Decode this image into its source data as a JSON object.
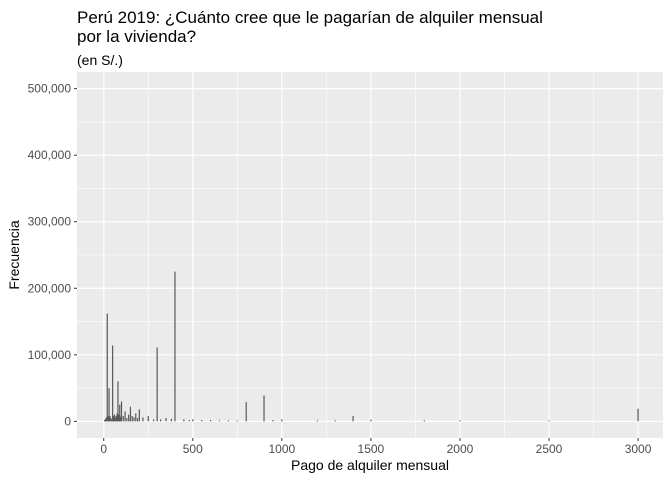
{
  "chart_data": {
    "type": "bar",
    "title": "Perú 2019: ¿Cuánto cree que le pagarían de alquiler mensual por la vivienda?",
    "subtitle": "(en S/.)",
    "xlabel": "Pago de alquiler mensual",
    "ylabel": "Frecuencia",
    "xlim": [
      -150,
      3140
    ],
    "ylim": [
      -25000,
      525000
    ],
    "x_ticks": [
      0,
      500,
      1000,
      1500,
      2000,
      2500,
      3000
    ],
    "x_tick_labels": [
      "0",
      "500",
      "1000",
      "1500",
      "2000",
      "2500",
      "3000"
    ],
    "y_ticks": [
      0,
      100000,
      200000,
      300000,
      400000,
      500000
    ],
    "y_tick_labels": [
      "0",
      "100,000",
      "200,000",
      "300,000",
      "400,000",
      "500,000"
    ],
    "grid": true,
    "colors": {
      "panel": "#ebebeb",
      "grid": "#ffffff",
      "bar": "#595959"
    },
    "x": [
      5,
      10,
      15,
      20,
      25,
      30,
      35,
      40,
      45,
      50,
      55,
      60,
      65,
      70,
      75,
      80,
      85,
      90,
      95,
      100,
      110,
      120,
      130,
      140,
      150,
      160,
      170,
      180,
      190,
      200,
      220,
      250,
      280,
      300,
      320,
      350,
      380,
      400,
      450,
      480,
      500,
      550,
      600,
      650,
      700,
      750,
      800,
      900,
      950,
      1000,
      1200,
      1300,
      1400,
      1500,
      1800,
      2000,
      2500,
      3000
    ],
    "values": [
      2000,
      4000,
      6000,
      162000,
      8000,
      50000,
      8000,
      5000,
      3000,
      114000,
      8000,
      10000,
      6000,
      8000,
      12000,
      60000,
      10000,
      25000,
      7000,
      30000,
      8000,
      15000,
      5000,
      10000,
      22000,
      8000,
      6000,
      12000,
      5000,
      18000,
      6000,
      8000,
      3000,
      111000,
      3000,
      5000,
      4000,
      225000,
      3000,
      2000,
      3000,
      2000,
      2000,
      1500,
      1500,
      1500,
      29000,
      39000,
      2000,
      3000,
      1500,
      1500,
      8000,
      2500,
      1500,
      1500,
      1500,
      19000
    ]
  }
}
